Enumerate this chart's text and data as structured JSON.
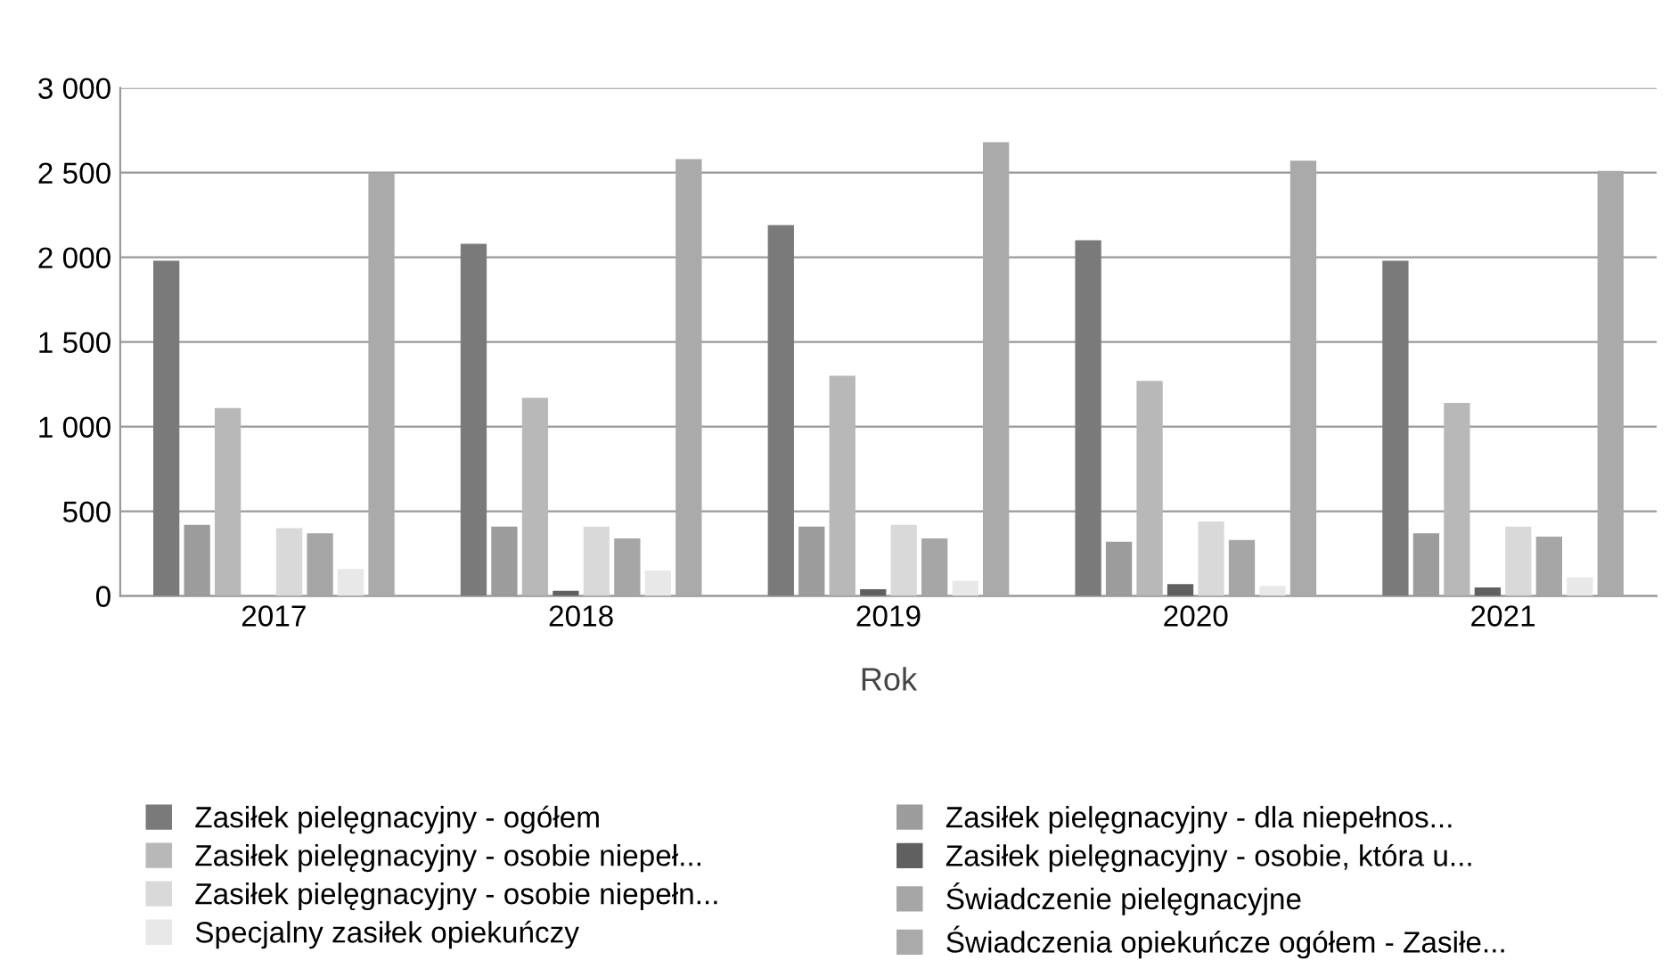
{
  "chart_data": {
    "type": "bar",
    "xlabel": "Rok",
    "categories": [
      "2017",
      "2018",
      "2019",
      "2020",
      "2021"
    ],
    "series": [
      {
        "name": "Zasiłek pielęgnacyjny - ogółem",
        "color": "#7a7a7a",
        "values": [
          1980,
          2080,
          2190,
          2100,
          1980
        ]
      },
      {
        "name": "Zasiłek pielęgnacyjny - dla niepełnos...",
        "color": "#9c9c9c",
        "values": [
          420,
          410,
          410,
          320,
          370
        ]
      },
      {
        "name": "Zasiłek pielęgnacyjny - osobie niepeł...",
        "color": "#b8b8b8",
        "values": [
          1110,
          1170,
          1300,
          1270,
          1140
        ]
      },
      {
        "name": "Zasiłek pielęgnacyjny - osobie, która u...",
        "color": "#606060",
        "values": [
          0,
          30,
          40,
          70,
          50
        ]
      },
      {
        "name": "Zasiłek pielęgnacyjny - osobie niepełn...",
        "color": "#d9d9d9",
        "values": [
          400,
          410,
          420,
          440,
          410
        ]
      },
      {
        "name": "Świadczenie pielęgnacyjne",
        "color": "#a6a6a6",
        "values": [
          370,
          340,
          340,
          330,
          350
        ]
      },
      {
        "name": "Specjalny zasiłek opiekuńczy",
        "color": "#e8e8e8",
        "values": [
          160,
          150,
          90,
          60,
          110
        ]
      },
      {
        "name": "Świadczenia opiekuńcze ogółem - Zasiłe...",
        "color": "#aaaaaa",
        "values": [
          2500,
          2580,
          2680,
          2570,
          2510
        ]
      }
    ],
    "ylim": [
      0,
      3000
    ],
    "yticks": [
      0,
      500,
      {
        "value": 1000,
        "label": "1 000"
      },
      {
        "value": 1500,
        "label": "1 500"
      },
      {
        "value": 2000,
        "label": "2 000"
      },
      {
        "value": 2500,
        "label": "2 500"
      },
      {
        "value": 3000,
        "label": "3 000"
      }
    ],
    "grid": "y",
    "legend": "bottom"
  }
}
